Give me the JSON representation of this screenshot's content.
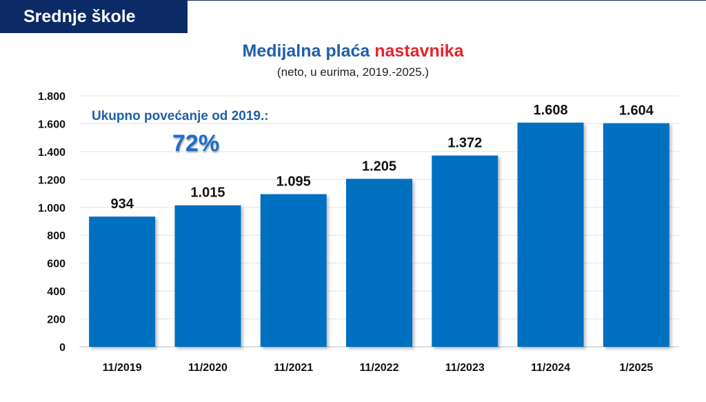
{
  "header": {
    "section_title": "Srednje škole"
  },
  "chart_data": {
    "type": "bar",
    "title_main": "Medijalna plaća",
    "title_highlight": "nastavnika",
    "subtitle": "(neto, u eurima, 2019.-2025.)",
    "categories": [
      "11/2019",
      "11/2020",
      "11/2021",
      "11/2022",
      "11/2023",
      "11/2024",
      "1/2025"
    ],
    "values": [
      934,
      1015,
      1095,
      1205,
      1372,
      1608,
      1604
    ],
    "value_labels": [
      "934",
      "1.015",
      "1.095",
      "1.205",
      "1.372",
      "1.608",
      "1.604"
    ],
    "ylim": [
      0,
      1800
    ],
    "y_ticks": [
      0,
      200,
      400,
      600,
      800,
      1000,
      1200,
      1400,
      1600,
      1800
    ],
    "y_tick_labels": [
      "0",
      "200",
      "400",
      "600",
      "800",
      "1.000",
      "1.200",
      "1.400",
      "1.600",
      "1.800"
    ],
    "grid": true,
    "bar_color": "#0070c0",
    "title_color": "#1f5fa8",
    "highlight_color": "#e3262e",
    "xlabel": "",
    "ylabel": "",
    "annotation": {
      "label": "Ukupno povećanje od 2019.:",
      "value": "72%"
    }
  }
}
